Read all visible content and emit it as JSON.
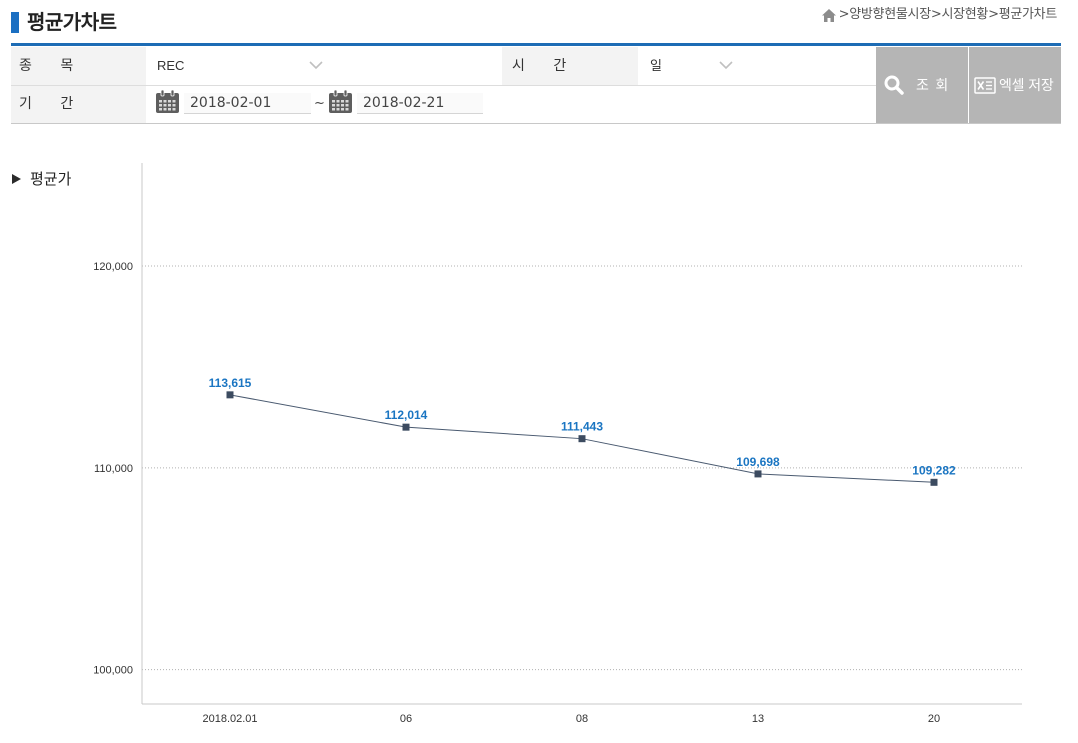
{
  "page": {
    "title": "평균가차트",
    "breadcrumb": {
      "separator": ">",
      "items": [
        "양방향현물시장",
        "시장현황",
        "평균가차트"
      ]
    }
  },
  "filters": {
    "item_label": "종 목",
    "item_value": "REC",
    "interval_label": "시 간",
    "interval_value": "일",
    "period_label": "기 간",
    "start_date": "2018-02-01",
    "range_separator": "~",
    "end_date": "2018-02-21",
    "search_button": "조 회",
    "excel_button": "엑셀 저장"
  },
  "icons": {
    "home": "home-icon",
    "select_arrow": "chevron-down-icon",
    "date_picker": "calendar-icon",
    "search": "search-icon",
    "excel": "excel-icon",
    "section_marker": "triangle-right-icon"
  },
  "colors": {
    "accent": "#1b6fc2",
    "label_cell_bg": "#f3f3f3",
    "button_bg": "#b5b5b5",
    "series_line": "#4a5a70",
    "series_marker": "#3c4b60",
    "data_label": "#1a75c2",
    "grid": "#b0b0b0"
  },
  "chart_data": {
    "type": "line",
    "title": "평균가",
    "categories": [
      "2018.02.01",
      "06",
      "08",
      "13",
      "20"
    ],
    "values": [
      113615,
      112014,
      111443,
      109698,
      109282
    ],
    "data_labels": true,
    "y_ticks": [
      100000,
      110000,
      120000
    ],
    "ylim": [
      98300,
      125100
    ],
    "grid": true,
    "legend": "none"
  }
}
